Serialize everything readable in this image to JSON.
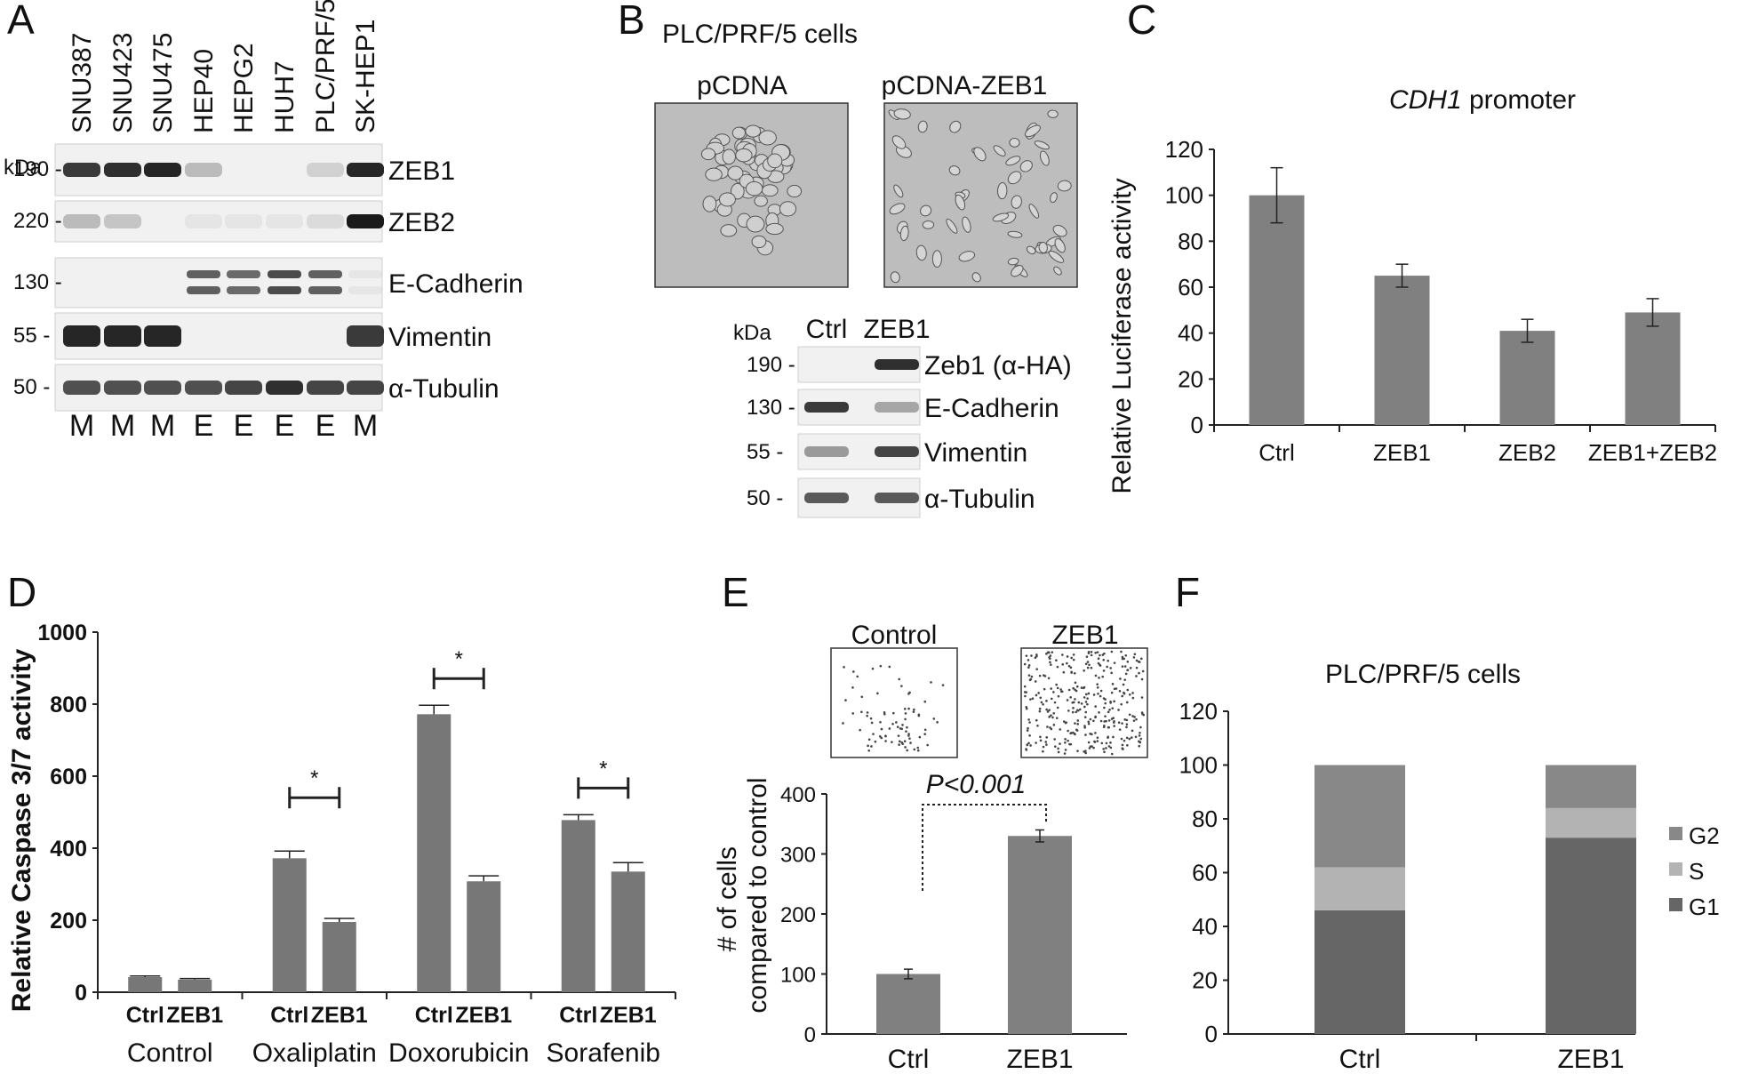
{
  "panels": {
    "A": {
      "letter": "A",
      "lanes": [
        "SNU387",
        "SNU423",
        "SNU475",
        "HEP40",
        "HEPG2",
        "HUH7",
        "PLC/PRF/5",
        "SK-HEP1"
      ],
      "kda_label": "kDa",
      "rows": [
        {
          "kda": "190 -",
          "name": "ZEB1",
          "bands": [
            0.85,
            0.9,
            0.95,
            0.25,
            0,
            0,
            0.15,
            0.95
          ]
        },
        {
          "kda": "220 -",
          "name": "ZEB2",
          "bands": [
            0.25,
            0.2,
            0,
            0.05,
            0.05,
            0.05,
            0.1,
            1.0
          ]
        },
        {
          "kda": "130 -",
          "name": "E-Cadherin",
          "bands": [
            0,
            0,
            0,
            0.7,
            0.65,
            0.8,
            0.7,
            0.05
          ]
        },
        {
          "kda": "55 -",
          "name": "Vimentin",
          "bands": [
            0.95,
            0.95,
            0.95,
            0,
            0,
            0,
            0,
            0.85
          ]
        },
        {
          "kda": "50 -",
          "name": "α-Tubulin",
          "bands": [
            0.75,
            0.75,
            0.75,
            0.75,
            0.8,
            0.9,
            0.8,
            0.8
          ]
        }
      ],
      "phenotypes": [
        "M",
        "M",
        "M",
        "E",
        "E",
        "E",
        "E",
        "M"
      ]
    },
    "B": {
      "letter": "B",
      "title": "PLC/PRF/5 cells",
      "image_labels": [
        "pCDNA",
        "pCDNA-ZEB1"
      ],
      "kda_label": "kDa",
      "lane_labels": [
        "Ctrl",
        "ZEB1"
      ],
      "rows": [
        {
          "kda": "190 -",
          "name": "Zeb1 (α-HA)",
          "bands": [
            0,
            0.9
          ]
        },
        {
          "kda": "130 -",
          "name": "E-Cadherin",
          "bands": [
            0.85,
            0.35
          ]
        },
        {
          "kda": "55 -",
          "name": "Vimentin",
          "bands": [
            0.4,
            0.8
          ]
        },
        {
          "kda": "50 -",
          "name": "α-Tubulin",
          "bands": [
            0.7,
            0.7
          ]
        }
      ]
    },
    "C": {
      "letter": "C",
      "title_italic": "CDH1",
      "title_rest": " promoter"
    },
    "D": {
      "letter": "D",
      "bar_labels": [
        "Ctrl",
        "ZEB1"
      ],
      "star": "*"
    },
    "E": {
      "letter": "E",
      "image_labels": [
        "Control",
        "ZEB1"
      ],
      "pvalue": "P<0.001"
    },
    "F": {
      "letter": "F",
      "title": "PLC/PRF/5 cells"
    }
  },
  "chart_data": [
    {
      "panel": "C",
      "type": "bar",
      "categories": [
        "Ctrl",
        "ZEB1",
        "ZEB2",
        "ZEB1+ZEB2"
      ],
      "values": [
        100,
        65,
        41,
        49
      ],
      "errors": [
        12,
        5,
        5,
        6
      ],
      "ylabel": "Relative Luciferase activity",
      "ylim": [
        0,
        120
      ],
      "yticks": [
        0,
        20,
        40,
        60,
        80,
        100,
        120
      ],
      "color": "#808080"
    },
    {
      "panel": "D",
      "type": "bar",
      "categories": [
        "Control",
        "Oxaliplatin",
        "Doxorubicin",
        "Sorafenib"
      ],
      "series": [
        {
          "name": "Ctrl",
          "values": [
            42,
            372,
            772,
            478
          ],
          "errors": [
            3,
            20,
            25,
            15
          ]
        },
        {
          "name": "ZEB1",
          "values": [
            35,
            195,
            308,
            335
          ],
          "errors": [
            3,
            10,
            15,
            25
          ]
        }
      ],
      "significance": [
        false,
        true,
        true,
        true
      ],
      "ylabel": "Relative Caspase 3/7 activity",
      "ylim": [
        0,
        1000
      ],
      "yticks": [
        0,
        200,
        400,
        600,
        800,
        1000
      ],
      "color": "#777777"
    },
    {
      "panel": "E",
      "type": "bar",
      "categories": [
        "Ctrl",
        "ZEB1"
      ],
      "values": [
        100,
        330
      ],
      "errors": [
        8,
        10
      ],
      "ylabel_lines": [
        "# of cells",
        "compared to control"
      ],
      "ylim": [
        0,
        400
      ],
      "yticks": [
        0,
        100,
        200,
        300,
        400
      ],
      "color": "#808080"
    },
    {
      "panel": "F",
      "type": "bar",
      "stacked": true,
      "categories": [
        "Ctrl",
        "ZEB1"
      ],
      "series": [
        {
          "name": "G1",
          "values": [
            46,
            73
          ],
          "color": "#666666"
        },
        {
          "name": "S",
          "values": [
            16,
            11
          ],
          "color": "#b3b3b3"
        },
        {
          "name": "G2",
          "values": [
            38,
            16
          ],
          "color": "#888888"
        }
      ],
      "legend_order": [
        "G2",
        "S",
        "G1"
      ],
      "legend_position": "right",
      "ylim": [
        0,
        120
      ],
      "yticks": [
        0,
        20,
        40,
        60,
        80,
        100,
        120
      ]
    }
  ]
}
